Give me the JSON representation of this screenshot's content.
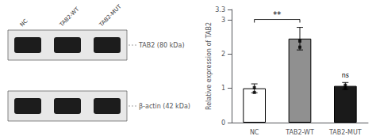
{
  "chart_data": {
    "type": "bar",
    "categories": [
      "NC",
      "TAB2-WT",
      "TAB2-MUT"
    ],
    "values": [
      1.0,
      2.45,
      1.07
    ],
    "colors": [
      "#ffffff",
      "#909090",
      "#1a1a1a"
    ],
    "error_bars": [
      0.13,
      0.33,
      0.1
    ],
    "points": [
      [
        0.88,
        1.02
      ],
      [
        2.2,
        2.38
      ],
      [
        1.0,
        1.09
      ]
    ],
    "ylabel": "Relative expression of TAB2",
    "ylim": [
      0,
      3.3
    ],
    "yticks": [
      0,
      1,
      2,
      3
    ],
    "grid": false,
    "annotations": [
      {
        "from": "NC",
        "to": "TAB2-WT",
        "label": "**"
      },
      {
        "category": "TAB2-MUT",
        "label": "ns"
      }
    ],
    "blot": {
      "lane_labels": [
        "NC",
        "TAB2-WT",
        "TAB2-MUT"
      ],
      "bands": [
        "TAB2 (80 kDa)",
        "β-actin (42 kDa)"
      ]
    }
  }
}
